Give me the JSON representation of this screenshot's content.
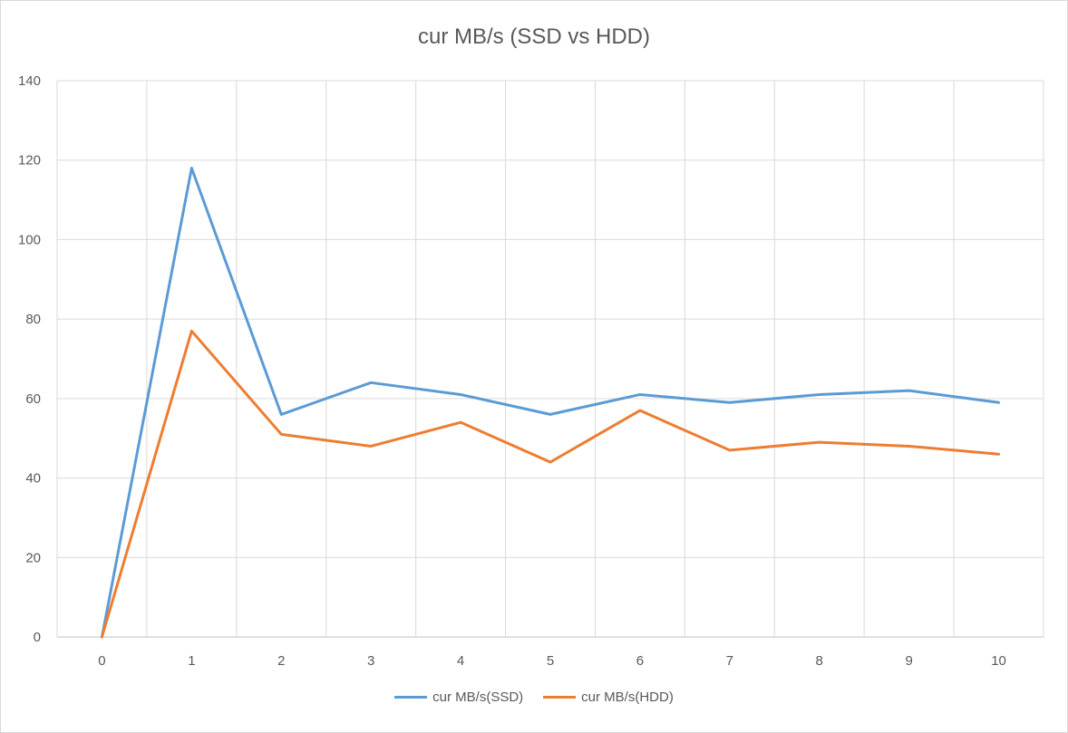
{
  "chart_data": {
    "type": "line",
    "title": "cur MB/s (SSD vs HDD)",
    "xlabel": "",
    "ylabel": "",
    "x": [
      0,
      1,
      2,
      3,
      4,
      5,
      6,
      7,
      8,
      9,
      10
    ],
    "ylim": [
      0,
      140
    ],
    "yticks": [
      0,
      20,
      40,
      60,
      80,
      100,
      120,
      140
    ],
    "grid": true,
    "legend_position": "bottom",
    "series": [
      {
        "name": "cur MB/s(SSD)",
        "color": "#5b9bd5",
        "values": [
          0,
          118,
          56,
          64,
          61,
          56,
          61,
          59,
          61,
          62,
          59
        ]
      },
      {
        "name": "cur MB/s(HDD)",
        "color": "#ed7d31",
        "values": [
          0,
          77,
          51,
          48,
          54,
          44,
          57,
          47,
          49,
          48,
          46
        ]
      }
    ]
  }
}
